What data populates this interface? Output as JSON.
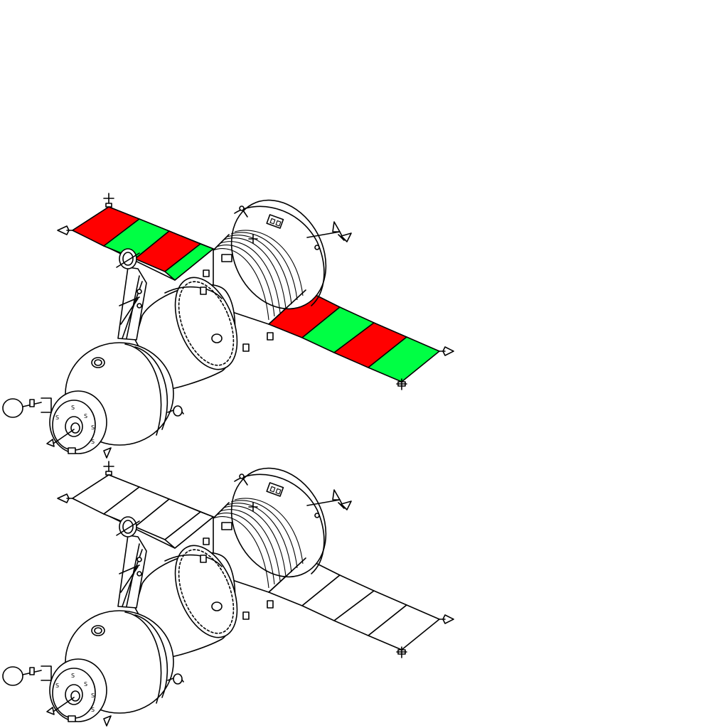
{
  "figure": {
    "subject": "spacecraft",
    "views": [
      {
        "id": "colored",
        "panel_colors": [
          "#ff0000",
          "#00ff44",
          "#ff0000",
          "#00ff44"
        ]
      },
      {
        "id": "outline",
        "panel_colors": [
          "#ffffff",
          "#ffffff",
          "#ffffff",
          "#ffffff"
        ]
      }
    ],
    "colors": {
      "line": "#000000",
      "background": "#ffffff",
      "red_panel": "#ff0000",
      "green_panel": "#00ff44"
    }
  }
}
